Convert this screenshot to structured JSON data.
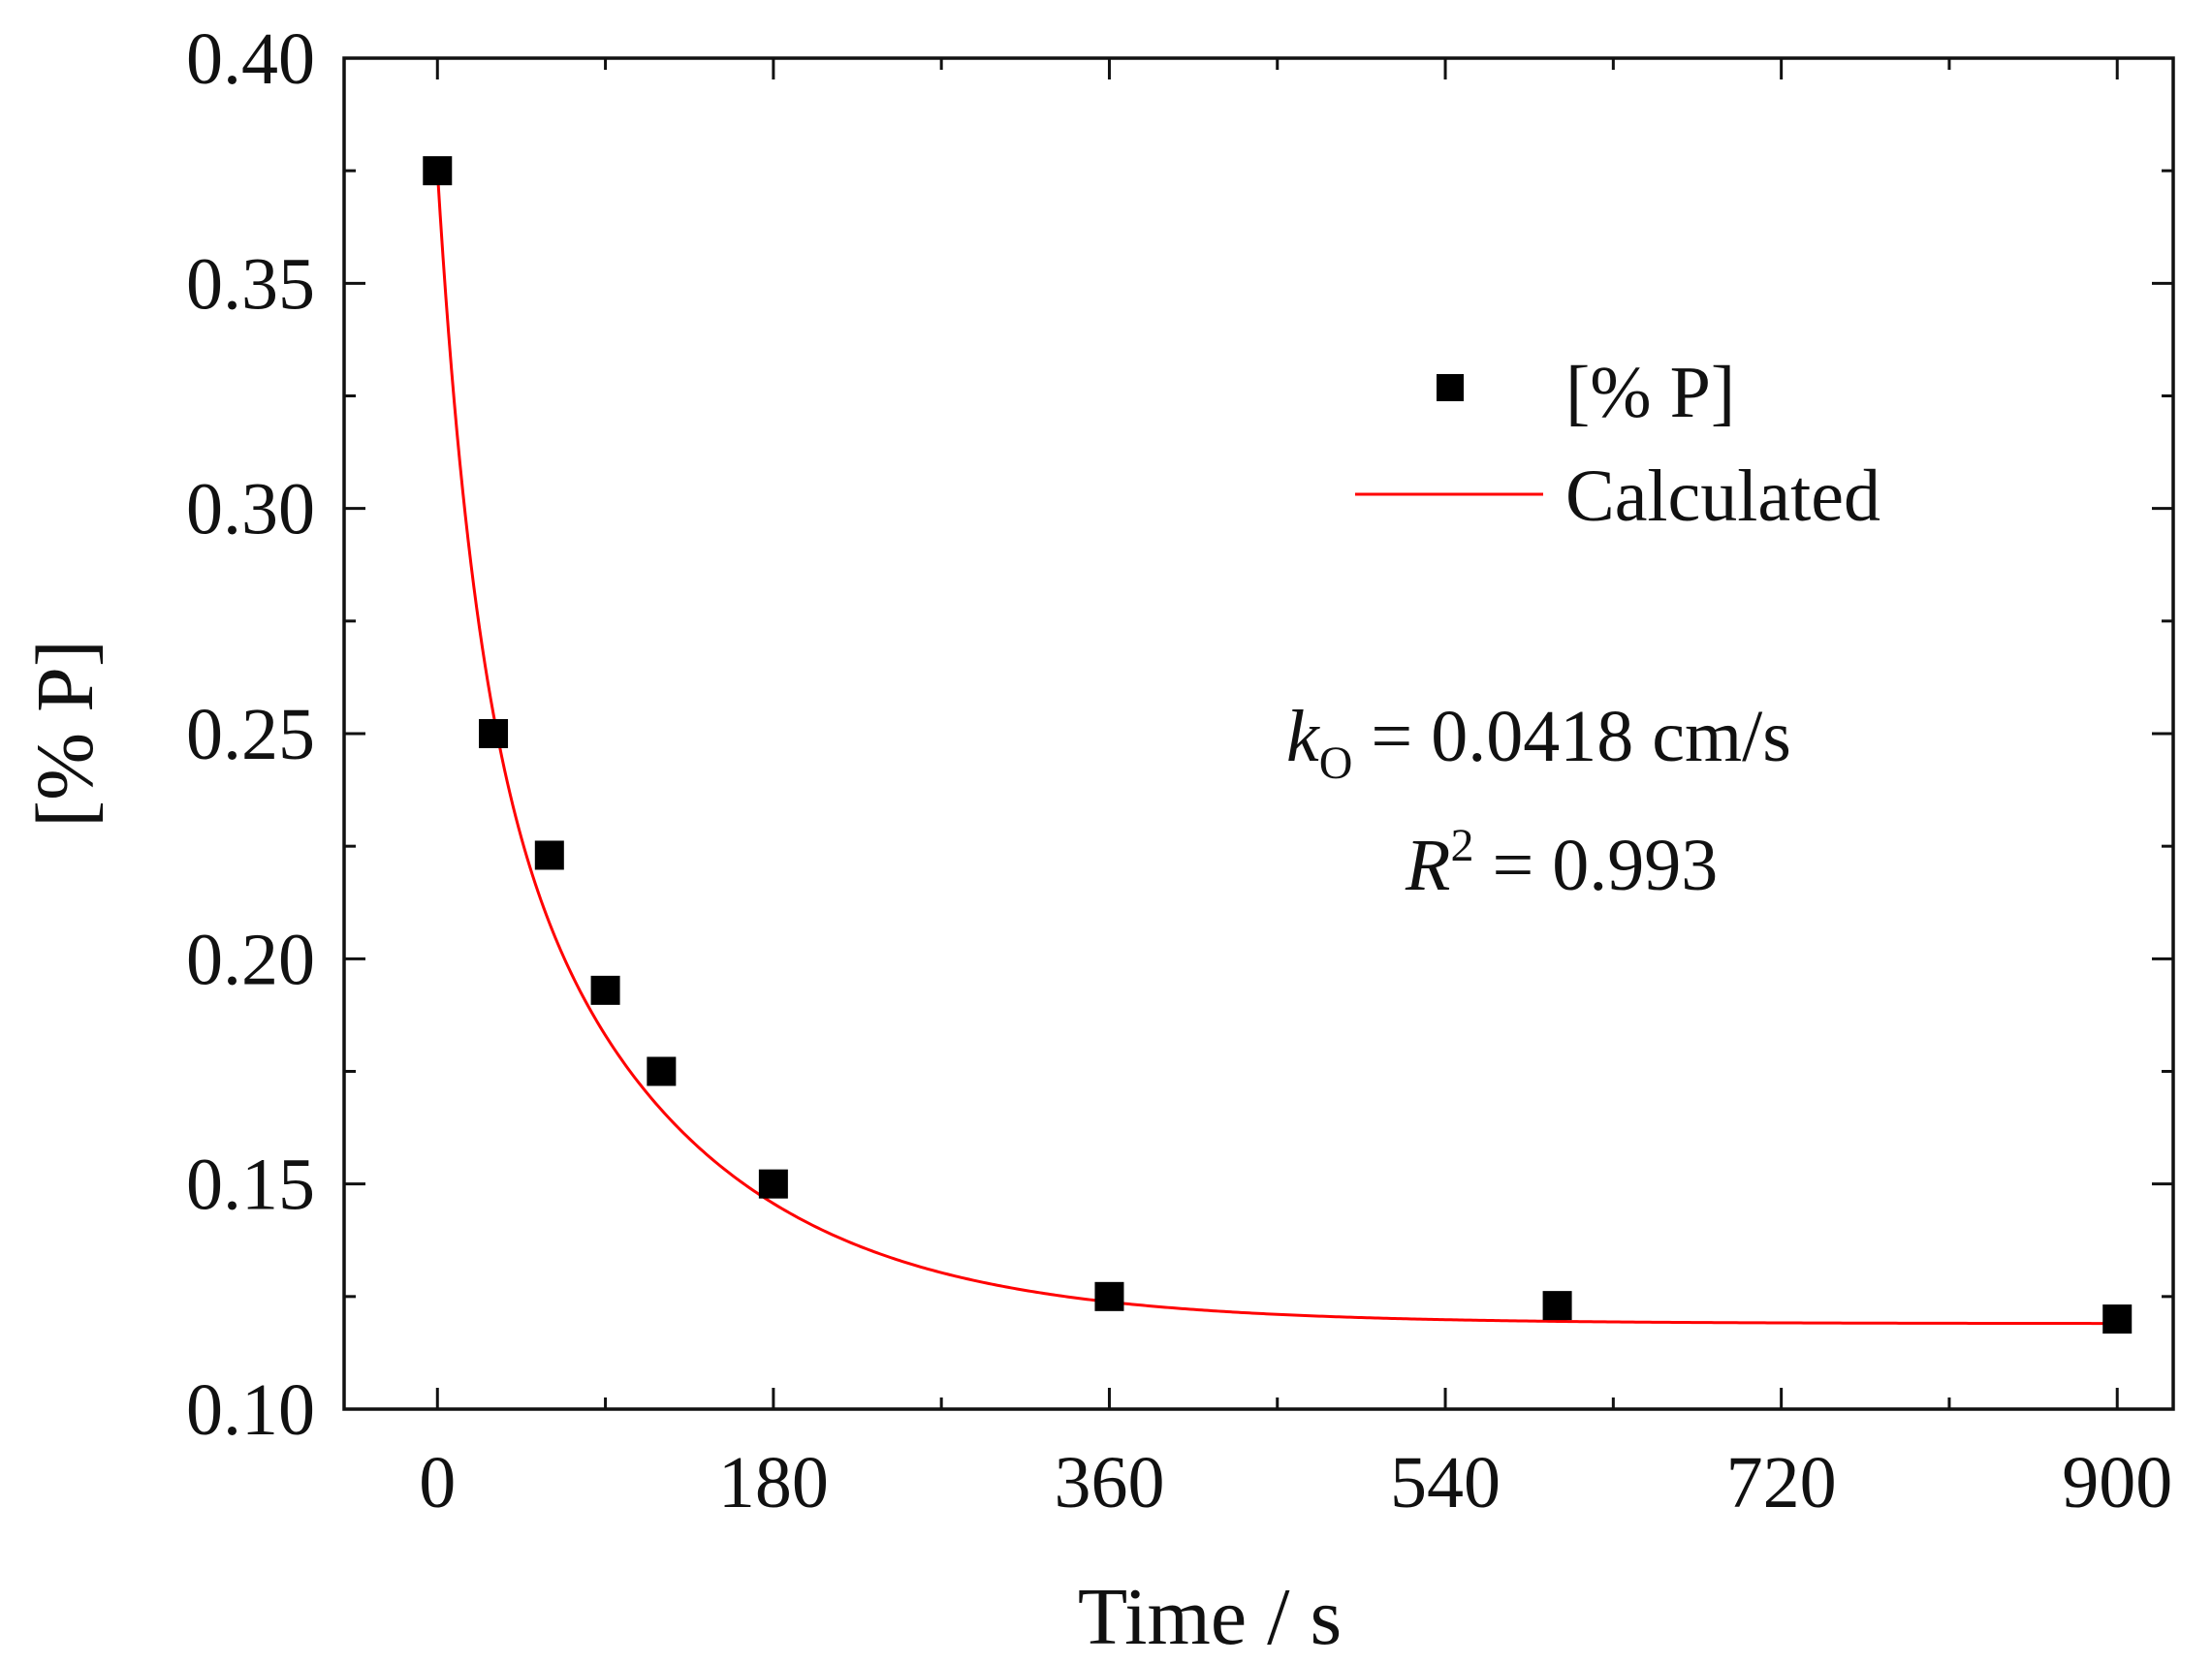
{
  "chart_data": {
    "type": "scatter",
    "title": "",
    "xlabel": "Time / s",
    "ylabel": "[% P]",
    "xlim": [
      -50,
      930
    ],
    "ylim": [
      0.1,
      0.4
    ],
    "x_ticks": [
      0,
      180,
      360,
      540,
      720,
      900
    ],
    "x_tick_labels": [
      "0",
      "180",
      "360",
      "540",
      "720",
      "900"
    ],
    "y_ticks": [
      0.1,
      0.15,
      0.2,
      0.25,
      0.3,
      0.35,
      0.4
    ],
    "y_tick_labels": [
      "0.10",
      "0.15",
      "0.20",
      "0.25",
      "0.30",
      "0.35",
      "0.40"
    ],
    "grid": false,
    "legend_position": "top-right",
    "series": [
      {
        "name": "[% P]",
        "kind": "scatter",
        "marker": "square",
        "color": "#000000",
        "x": [
          0,
          30,
          60,
          90,
          120,
          180,
          360,
          600,
          900
        ],
        "y": [
          0.375,
          0.25,
          0.223,
          0.193,
          0.175,
          0.15,
          0.125,
          0.123,
          0.12
        ]
      },
      {
        "name": "Calculated",
        "kind": "line",
        "color": "#ff0000",
        "model": {
          "form": "c_inf + a1*exp(-t/tau1) + a2*exp(-t/tau2)",
          "c_inf": 0.119,
          "a1": 0.108,
          "tau1": 20,
          "a2": 0.148,
          "tau2": 105
        },
        "x_range": [
          0,
          900
        ]
      }
    ],
    "annotations": {
      "k_symbol": "k",
      "k_subscript": "O",
      "k_value": " = 0.0418 cm/s",
      "r_symbol": "R",
      "r_superscript": "2",
      "r_value": " = 0.993"
    }
  }
}
